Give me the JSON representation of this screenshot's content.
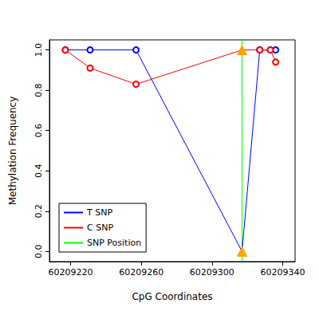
{
  "chart_data": {
    "type": "line",
    "x_label": "CpG Coordinates",
    "y_label": "Methylation Frequency",
    "x": [
      60209217,
      60209231,
      60209257,
      60209317,
      60209327,
      60209333,
      60209336
    ],
    "series": [
      {
        "name": "T SNP",
        "color": "#0000ff",
        "marker": "open_circle",
        "values": [
          1,
          1,
          1,
          0,
          1,
          1,
          1
        ]
      },
      {
        "name": "C SNP",
        "color": "#ff0000",
        "marker": "open_circle",
        "values": [
          1,
          0.91,
          0.83,
          1,
          1,
          1,
          0.94
        ]
      }
    ],
    "snp": {
      "name": "SNP Position",
      "x": 60209317,
      "color": "#00ff00"
    },
    "xlim": [
      60209208,
      60209347
    ],
    "xticks": [
      60209220,
      60209260,
      60209300,
      60209340
    ],
    "ylim": [
      -0.05,
      1.05
    ],
    "yticks": [
      {
        "value": 0,
        "label": "0.0"
      },
      0.2,
      0.4,
      0.6,
      0.8,
      {
        "value": 1,
        "label": "1.0"
      }
    ],
    "grid": false,
    "legend": "bottom-left"
  }
}
